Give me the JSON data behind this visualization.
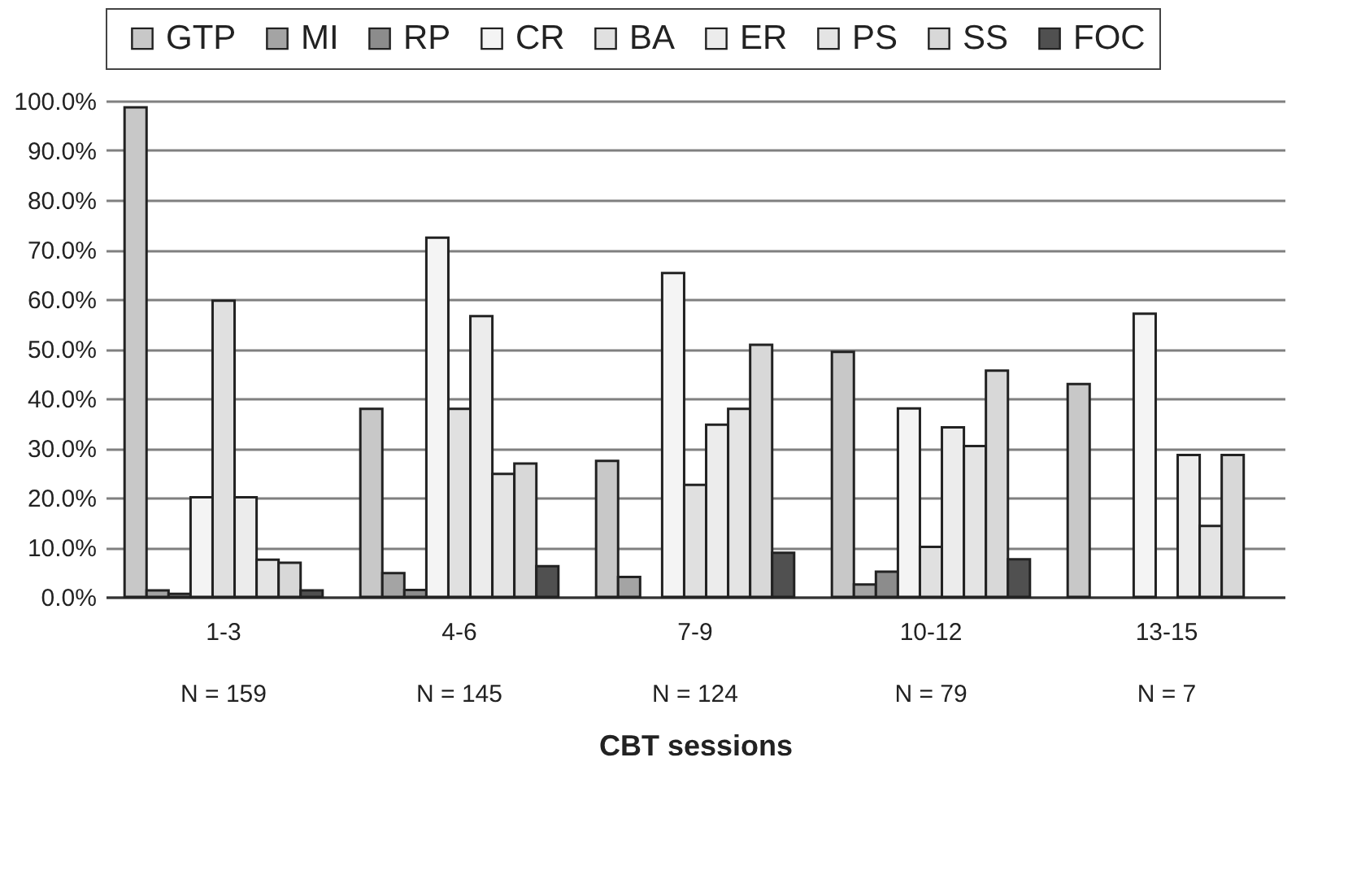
{
  "chart_data": {
    "type": "bar",
    "xlabel": "CBT sessions",
    "categories": [
      "1-3\nN = 159",
      "4-6\nN = 145",
      "7-9\nN = 124",
      "10-12\nN = 79",
      "13-15\nN = 7"
    ],
    "series": [
      {
        "name": "GTP",
        "color": "#c8c8c8",
        "values": [
          98.7,
          37.9,
          27.4,
          49.4,
          42.9
        ]
      },
      {
        "name": "MI",
        "color": "#a4a4a4",
        "values": [
          1.3,
          4.8,
          4.0,
          2.5,
          0
        ]
      },
      {
        "name": "RP",
        "color": "#8c8c8c",
        "values": [
          0.6,
          1.4,
          0,
          5.1,
          0
        ]
      },
      {
        "name": "CR",
        "color": "#f4f4f4",
        "values": [
          20.1,
          72.4,
          65.3,
          38.0,
          57.1
        ]
      },
      {
        "name": "BA",
        "color": "#e0e0e0",
        "values": [
          59.7,
          37.9,
          22.6,
          10.1,
          0
        ]
      },
      {
        "name": "ER",
        "color": "#ececec",
        "values": [
          20.1,
          56.6,
          34.7,
          34.2,
          28.6
        ]
      },
      {
        "name": "PS",
        "color": "#e4e4e4",
        "values": [
          7.5,
          24.8,
          37.9,
          30.4,
          14.3
        ]
      },
      {
        "name": "SS",
        "color": "#d8d8d8",
        "values": [
          6.9,
          26.9,
          50.8,
          45.6,
          28.6
        ]
      },
      {
        "name": "FOC",
        "color": "#505050",
        "values": [
          1.3,
          6.2,
          8.9,
          7.6,
          0
        ]
      }
    ],
    "ylim": [
      0,
      100
    ],
    "yticks": [
      {
        "value": 0,
        "label": "0.0%"
      },
      {
        "value": 10,
        "label": "10.0%"
      },
      {
        "value": 20,
        "label": "20.0%"
      },
      {
        "value": 30,
        "label": "30.0%"
      },
      {
        "value": 40,
        "label": "40.0%"
      },
      {
        "value": 50,
        "label": "50.0%"
      },
      {
        "value": 60,
        "label": "60.0%"
      },
      {
        "value": 70,
        "label": "70.0%"
      },
      {
        "value": 80,
        "label": "80.0%"
      },
      {
        "value": 90,
        "label": "90.0%"
      },
      {
        "value": 100,
        "label": "100.0%"
      }
    ],
    "grid": "y",
    "legend": "top"
  }
}
